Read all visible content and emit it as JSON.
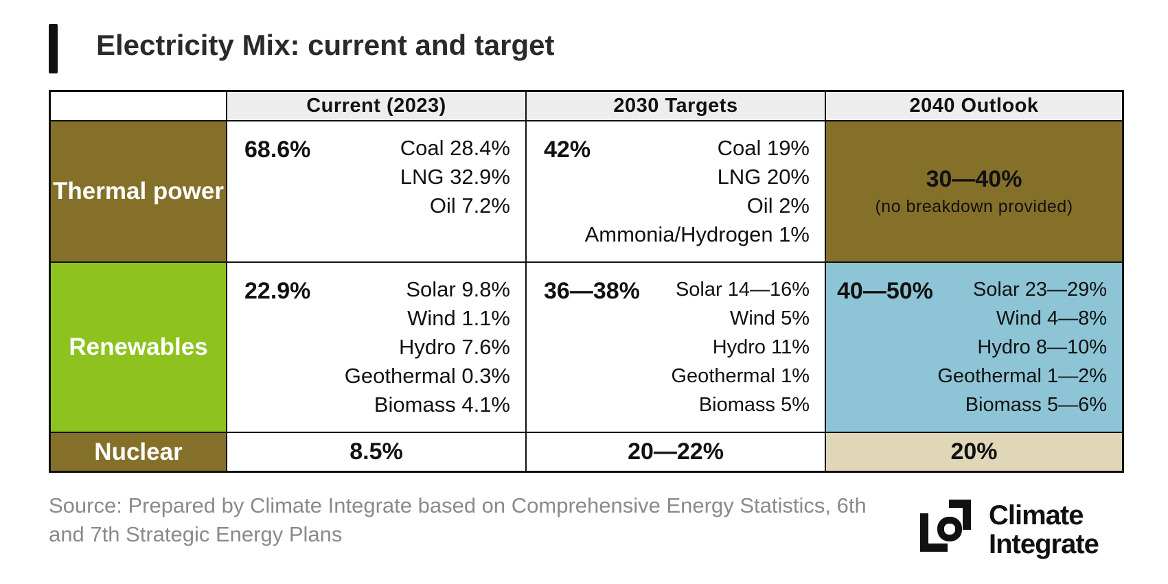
{
  "title": "Electricity Mix: current and target",
  "table": {
    "columns": [
      "Current (2023)",
      "2030 Targets",
      "2040 Outlook"
    ],
    "rows": [
      {
        "label": "Thermal power",
        "color": "#85702a",
        "cells": [
          {
            "total": "68.6%",
            "items": [
              "Coal 28.4%",
              "LNG 32.9%",
              "Oil 7.2%"
            ]
          },
          {
            "total": "42%",
            "items": [
              "Coal 19%",
              "LNG 20%",
              "Oil 2%",
              "Ammonia/Hydrogen 1%"
            ]
          },
          {
            "total": "30—40%",
            "note": "(no breakdown provided)",
            "color": "#85702a"
          }
        ]
      },
      {
        "label": "Renewables",
        "color": "#8dc21f",
        "cells": [
          {
            "total": "22.9%",
            "items": [
              "Solar 9.8%",
              "Wind 1.1%",
              "Hydro 7.6%",
              "Geothermal 0.3%",
              "Biomass 4.1%"
            ]
          },
          {
            "total": "36—38%",
            "items": [
              "Solar 14—16%",
              "Wind 5%",
              "Hydro 11%",
              "Geothermal 1%",
              "Biomass 5%"
            ]
          },
          {
            "total": "40—50%",
            "items": [
              "Solar 23—29%",
              "Wind 4—8%",
              "Hydro 8—10%",
              "Geothermal 1—2%",
              "Biomass 5—6%"
            ],
            "color": "#8ec5d6"
          }
        ]
      },
      {
        "label": "Nuclear",
        "color": "#85702a",
        "cells": [
          {
            "total": "8.5%"
          },
          {
            "total": "20—22%"
          },
          {
            "total": "20%",
            "color": "#e0d6b8"
          }
        ]
      }
    ]
  },
  "source": "Source: Prepared by Climate Integrate based on Comprehensive Energy Statistics, 6th and 7th Strategic Energy Plans",
  "logo": [
    "Climate",
    "Integrate"
  ]
}
